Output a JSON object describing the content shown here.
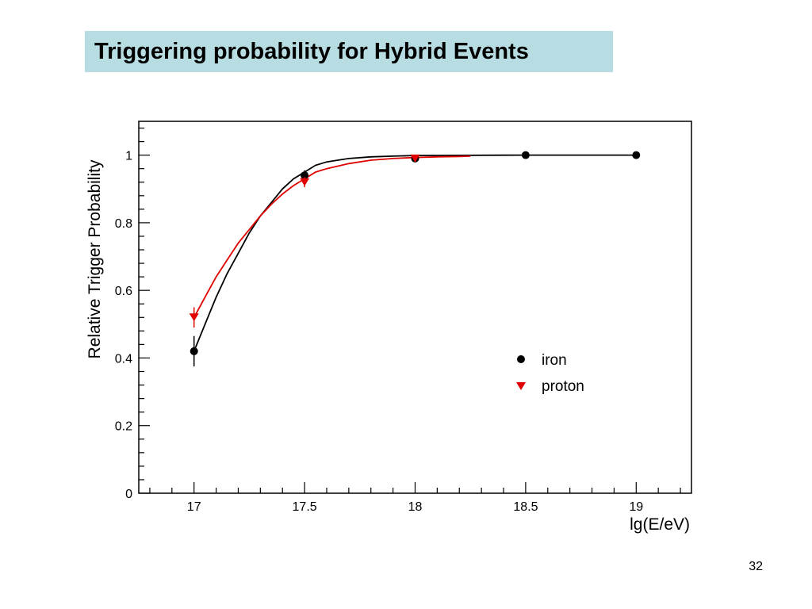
{
  "slide": {
    "title": "Triggering probability for Hybrid Events",
    "page_number": "32"
  },
  "chart_data": {
    "type": "scatter",
    "title": "",
    "xlabel": "lg(E/eV)",
    "ylabel": "Relative Trigger Probability",
    "xlim": [
      16.75,
      19.25
    ],
    "ylim": [
      0,
      1.1
    ],
    "xticks": [
      17,
      17.5,
      18,
      18.5,
      19
    ],
    "xtick_labels": [
      "17",
      "17.5",
      "18",
      "18.5",
      "19"
    ],
    "yticks": [
      0,
      0.2,
      0.4,
      0.6,
      0.8,
      1.0
    ],
    "ytick_labels": [
      "0",
      "0.2",
      "0.4",
      "0.6",
      "0.8",
      "1"
    ],
    "grid": false,
    "legend_position": "right, lower-middle",
    "series": [
      {
        "name": "iron",
        "color": "#000000",
        "marker": "circle",
        "x": [
          17.0,
          17.5,
          18.0,
          18.5,
          19.0
        ],
        "y": [
          0.42,
          0.94,
          0.99,
          1.0,
          1.0
        ],
        "yerr": [
          0.045,
          0.015,
          0.01,
          0.005,
          0.005
        ],
        "fit": {
          "x": [
            17.0,
            17.05,
            17.1,
            17.15,
            17.2,
            17.25,
            17.3,
            17.35,
            17.4,
            17.45,
            17.5,
            17.55,
            17.6,
            17.65,
            17.7,
            17.8,
            17.9,
            18.0,
            18.5,
            19.0
          ],
          "y": [
            0.42,
            0.5,
            0.58,
            0.65,
            0.71,
            0.77,
            0.82,
            0.86,
            0.9,
            0.93,
            0.95,
            0.97,
            0.98,
            0.985,
            0.99,
            0.995,
            0.997,
            0.999,
            1.0,
            1.0
          ]
        }
      },
      {
        "name": "proton",
        "color": "#e00000",
        "marker": "triangle-down",
        "x": [
          17.0,
          17.5,
          18.0
        ],
        "y": [
          0.52,
          0.92,
          0.99
        ],
        "yerr": [
          0.03,
          0.015,
          0.01
        ],
        "fit": {
          "x": [
            17.0,
            17.05,
            17.1,
            17.15,
            17.2,
            17.25,
            17.3,
            17.35,
            17.4,
            17.45,
            17.5,
            17.55,
            17.6,
            17.7,
            17.8,
            17.9,
            18.0,
            18.1,
            18.2,
            18.25
          ],
          "y": [
            0.52,
            0.58,
            0.64,
            0.69,
            0.74,
            0.78,
            0.82,
            0.855,
            0.885,
            0.91,
            0.93,
            0.95,
            0.96,
            0.975,
            0.985,
            0.99,
            0.993,
            0.995,
            0.996,
            0.997
          ]
        }
      }
    ]
  }
}
